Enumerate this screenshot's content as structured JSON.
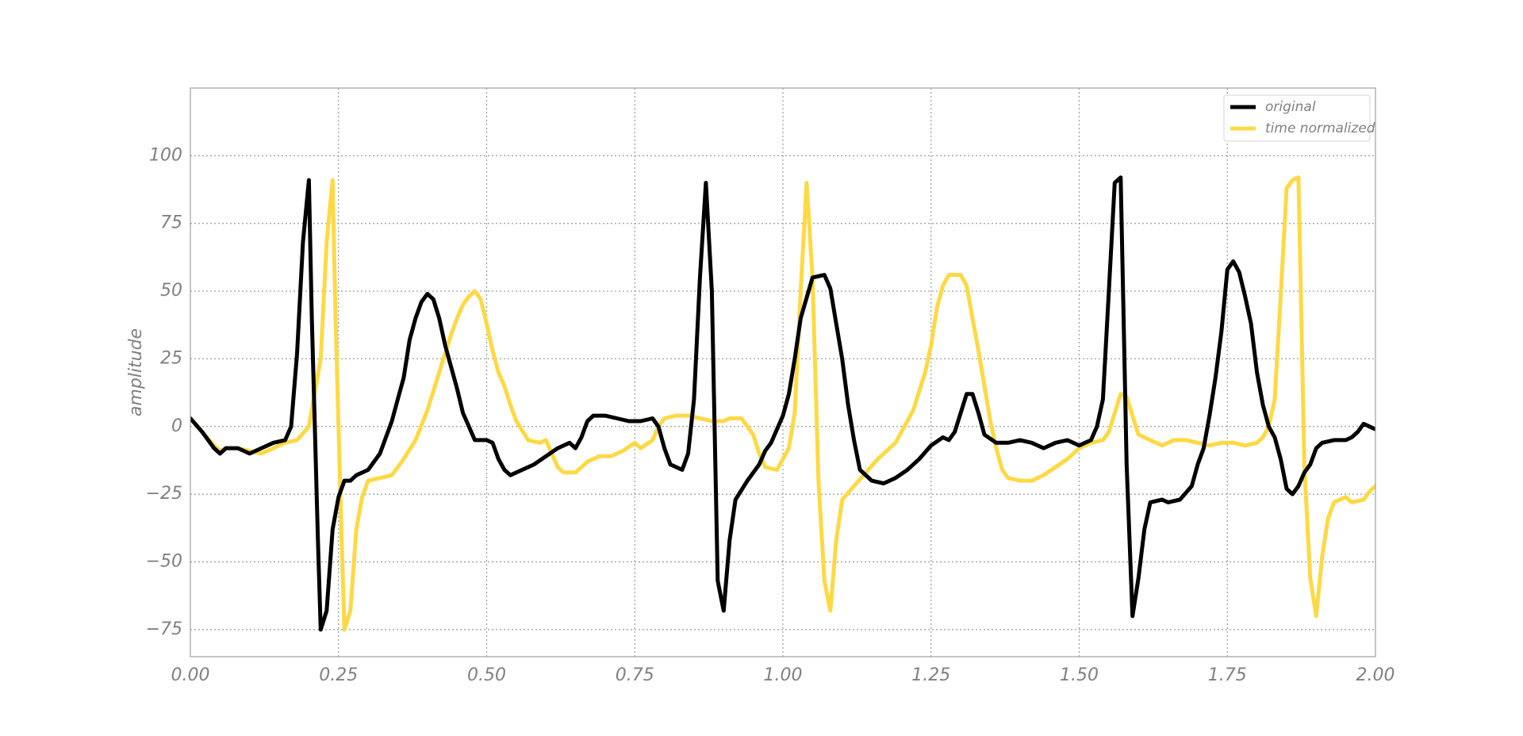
{
  "chart_data": {
    "type": "line",
    "title": "",
    "xlabel": "",
    "ylabel": "amplitude",
    "xlim": [
      0,
      2
    ],
    "ylim": [
      -85,
      125
    ],
    "x_ticks": [
      0,
      0.25,
      0.5,
      0.75,
      1.0,
      1.25,
      1.5,
      1.75,
      2.0
    ],
    "x_tick_labels": [
      "0.00",
      "0.25",
      "0.50",
      "0.75",
      "1.00",
      "1.25",
      "1.50",
      "1.75",
      "2.00"
    ],
    "y_ticks": [
      100,
      75,
      50,
      25,
      0,
      -25,
      -50,
      -75
    ],
    "y_tick_labels": [
      "100",
      "75",
      "50",
      "25",
      "0",
      "−25",
      "−50",
      "−75"
    ],
    "grid": true,
    "legend_position": "top-right",
    "series": [
      {
        "name": "original",
        "color": "#000000",
        "points": [
          [
            0.0,
            3
          ],
          [
            0.02,
            -2
          ],
          [
            0.04,
            -8
          ],
          [
            0.05,
            -10
          ],
          [
            0.06,
            -8
          ],
          [
            0.08,
            -8
          ],
          [
            0.1,
            -10
          ],
          [
            0.12,
            -8
          ],
          [
            0.14,
            -6
          ],
          [
            0.16,
            -5
          ],
          [
            0.17,
            0
          ],
          [
            0.18,
            27
          ],
          [
            0.19,
            68
          ],
          [
            0.2,
            91
          ],
          [
            0.205,
            40
          ],
          [
            0.21,
            0
          ],
          [
            0.215,
            -40
          ],
          [
            0.22,
            -75
          ],
          [
            0.23,
            -68
          ],
          [
            0.24,
            -38
          ],
          [
            0.25,
            -26
          ],
          [
            0.26,
            -20
          ],
          [
            0.27,
            -20
          ],
          [
            0.28,
            -18
          ],
          [
            0.3,
            -16
          ],
          [
            0.32,
            -10
          ],
          [
            0.34,
            2
          ],
          [
            0.35,
            10
          ],
          [
            0.36,
            18
          ],
          [
            0.37,
            32
          ],
          [
            0.38,
            40
          ],
          [
            0.39,
            46
          ],
          [
            0.4,
            49
          ],
          [
            0.41,
            47
          ],
          [
            0.42,
            40
          ],
          [
            0.43,
            30
          ],
          [
            0.44,
            22
          ],
          [
            0.45,
            14
          ],
          [
            0.46,
            5
          ],
          [
            0.47,
            0
          ],
          [
            0.48,
            -5
          ],
          [
            0.5,
            -5
          ],
          [
            0.51,
            -6
          ],
          [
            0.52,
            -12
          ],
          [
            0.53,
            -16
          ],
          [
            0.54,
            -18
          ],
          [
            0.56,
            -16
          ],
          [
            0.58,
            -14
          ],
          [
            0.6,
            -11
          ],
          [
            0.62,
            -8
          ],
          [
            0.64,
            -6
          ],
          [
            0.65,
            -8
          ],
          [
            0.66,
            -4
          ],
          [
            0.67,
            2
          ],
          [
            0.68,
            4
          ],
          [
            0.7,
            4
          ],
          [
            0.72,
            3
          ],
          [
            0.74,
            2
          ],
          [
            0.76,
            2
          ],
          [
            0.78,
            3
          ],
          [
            0.79,
            0
          ],
          [
            0.8,
            -8
          ],
          [
            0.81,
            -14
          ],
          [
            0.83,
            -16
          ],
          [
            0.84,
            -10
          ],
          [
            0.85,
            10
          ],
          [
            0.86,
            55
          ],
          [
            0.87,
            90
          ],
          [
            0.88,
            50
          ],
          [
            0.89,
            -57
          ],
          [
            0.9,
            -68
          ],
          [
            0.91,
            -42
          ],
          [
            0.92,
            -27
          ],
          [
            0.94,
            -20
          ],
          [
            0.96,
            -14
          ],
          [
            0.97,
            -9
          ],
          [
            0.98,
            -6
          ],
          [
            1.0,
            4
          ],
          [
            1.01,
            12
          ],
          [
            1.02,
            25
          ],
          [
            1.03,
            40
          ],
          [
            1.05,
            55
          ],
          [
            1.07,
            56
          ],
          [
            1.08,
            51
          ],
          [
            1.09,
            38
          ],
          [
            1.1,
            25
          ],
          [
            1.11,
            8
          ],
          [
            1.12,
            -5
          ],
          [
            1.13,
            -16
          ],
          [
            1.15,
            -20
          ],
          [
            1.17,
            -21
          ],
          [
            1.19,
            -19
          ],
          [
            1.21,
            -16
          ],
          [
            1.23,
            -12
          ],
          [
            1.25,
            -7
          ],
          [
            1.27,
            -4
          ],
          [
            1.28,
            -5
          ],
          [
            1.29,
            -2
          ],
          [
            1.3,
            5
          ],
          [
            1.31,
            12
          ],
          [
            1.32,
            12
          ],
          [
            1.33,
            5
          ],
          [
            1.34,
            -3
          ],
          [
            1.36,
            -6
          ],
          [
            1.38,
            -6
          ],
          [
            1.4,
            -5
          ],
          [
            1.42,
            -6
          ],
          [
            1.44,
            -8
          ],
          [
            1.46,
            -6
          ],
          [
            1.48,
            -5
          ],
          [
            1.5,
            -7
          ],
          [
            1.52,
            -5
          ],
          [
            1.53,
            0
          ],
          [
            1.54,
            10
          ],
          [
            1.55,
            50
          ],
          [
            1.56,
            90
          ],
          [
            1.57,
            92
          ],
          [
            1.575,
            40
          ],
          [
            1.58,
            -14
          ],
          [
            1.59,
            -70
          ],
          [
            1.6,
            -56
          ],
          [
            1.61,
            -38
          ],
          [
            1.62,
            -28
          ],
          [
            1.64,
            -27
          ],
          [
            1.65,
            -28
          ],
          [
            1.67,
            -27
          ],
          [
            1.69,
            -22
          ],
          [
            1.7,
            -14
          ],
          [
            1.71,
            -8
          ],
          [
            1.72,
            4
          ],
          [
            1.73,
            18
          ],
          [
            1.74,
            35
          ],
          [
            1.75,
            58
          ],
          [
            1.76,
            61
          ],
          [
            1.77,
            57
          ],
          [
            1.78,
            48
          ],
          [
            1.79,
            38
          ],
          [
            1.8,
            20
          ],
          [
            1.81,
            8
          ],
          [
            1.82,
            0
          ],
          [
            1.83,
            -4
          ],
          [
            1.84,
            -12
          ],
          [
            1.85,
            -23
          ],
          [
            1.86,
            -25
          ],
          [
            1.87,
            -22
          ],
          [
            1.88,
            -17
          ],
          [
            1.89,
            -14
          ],
          [
            1.9,
            -8
          ],
          [
            1.91,
            -6
          ],
          [
            1.93,
            -5
          ],
          [
            1.95,
            -5
          ],
          [
            1.96,
            -4
          ],
          [
            1.97,
            -2
          ],
          [
            1.98,
            1
          ],
          [
            1.99,
            0
          ],
          [
            2.0,
            -1
          ]
        ]
      },
      {
        "name": "time normalized",
        "color": "#FFD945",
        "points": [
          [
            0.0,
            3
          ],
          [
            0.02,
            -2
          ],
          [
            0.04,
            -7
          ],
          [
            0.05,
            -9
          ],
          [
            0.06,
            -8
          ],
          [
            0.08,
            -8
          ],
          [
            0.1,
            -9
          ],
          [
            0.12,
            -10
          ],
          [
            0.14,
            -8
          ],
          [
            0.16,
            -6
          ],
          [
            0.18,
            -5
          ],
          [
            0.2,
            0
          ],
          [
            0.22,
            25
          ],
          [
            0.23,
            68
          ],
          [
            0.24,
            91
          ],
          [
            0.245,
            40
          ],
          [
            0.25,
            0
          ],
          [
            0.255,
            -40
          ],
          [
            0.26,
            -75
          ],
          [
            0.27,
            -68
          ],
          [
            0.28,
            -38
          ],
          [
            0.29,
            -26
          ],
          [
            0.3,
            -20
          ],
          [
            0.32,
            -19
          ],
          [
            0.34,
            -18
          ],
          [
            0.36,
            -12
          ],
          [
            0.38,
            -5
          ],
          [
            0.4,
            6
          ],
          [
            0.42,
            20
          ],
          [
            0.44,
            34
          ],
          [
            0.45,
            40
          ],
          [
            0.46,
            45
          ],
          [
            0.47,
            48
          ],
          [
            0.48,
            50
          ],
          [
            0.49,
            47
          ],
          [
            0.5,
            38
          ],
          [
            0.51,
            28
          ],
          [
            0.52,
            20
          ],
          [
            0.53,
            15
          ],
          [
            0.54,
            8
          ],
          [
            0.55,
            2
          ],
          [
            0.57,
            -5
          ],
          [
            0.59,
            -6
          ],
          [
            0.6,
            -5
          ],
          [
            0.61,
            -10
          ],
          [
            0.62,
            -15
          ],
          [
            0.63,
            -17
          ],
          [
            0.65,
            -17
          ],
          [
            0.67,
            -13
          ],
          [
            0.69,
            -11
          ],
          [
            0.71,
            -11
          ],
          [
            0.73,
            -9
          ],
          [
            0.75,
            -6
          ],
          [
            0.76,
            -8
          ],
          [
            0.78,
            -5
          ],
          [
            0.79,
            0
          ],
          [
            0.8,
            3
          ],
          [
            0.82,
            4
          ],
          [
            0.84,
            4
          ],
          [
            0.86,
            3
          ],
          [
            0.88,
            2
          ],
          [
            0.9,
            2
          ],
          [
            0.91,
            3
          ],
          [
            0.93,
            3
          ],
          [
            0.95,
            -3
          ],
          [
            0.96,
            -10
          ],
          [
            0.97,
            -15
          ],
          [
            0.99,
            -16
          ],
          [
            1.0,
            -12
          ],
          [
            1.01,
            -8
          ],
          [
            1.02,
            5
          ],
          [
            1.03,
            50
          ],
          [
            1.04,
            90
          ],
          [
            1.05,
            55
          ],
          [
            1.06,
            -20
          ],
          [
            1.07,
            -57
          ],
          [
            1.08,
            -68
          ],
          [
            1.09,
            -42
          ],
          [
            1.1,
            -27
          ],
          [
            1.12,
            -22
          ],
          [
            1.14,
            -17
          ],
          [
            1.16,
            -12
          ],
          [
            1.18,
            -8
          ],
          [
            1.19,
            -6
          ],
          [
            1.2,
            -2
          ],
          [
            1.22,
            6
          ],
          [
            1.24,
            20
          ],
          [
            1.25,
            30
          ],
          [
            1.26,
            44
          ],
          [
            1.27,
            52
          ],
          [
            1.28,
            56
          ],
          [
            1.3,
            56
          ],
          [
            1.31,
            52
          ],
          [
            1.32,
            40
          ],
          [
            1.33,
            28
          ],
          [
            1.34,
            15
          ],
          [
            1.35,
            2
          ],
          [
            1.36,
            -8
          ],
          [
            1.37,
            -16
          ],
          [
            1.38,
            -19
          ],
          [
            1.4,
            -20
          ],
          [
            1.42,
            -20
          ],
          [
            1.44,
            -18
          ],
          [
            1.46,
            -15
          ],
          [
            1.48,
            -12
          ],
          [
            1.5,
            -8
          ],
          [
            1.52,
            -6
          ],
          [
            1.54,
            -5
          ],
          [
            1.55,
            -2
          ],
          [
            1.56,
            5
          ],
          [
            1.57,
            12
          ],
          [
            1.58,
            11
          ],
          [
            1.59,
            4
          ],
          [
            1.6,
            -3
          ],
          [
            1.62,
            -5
          ],
          [
            1.64,
            -7
          ],
          [
            1.66,
            -5
          ],
          [
            1.68,
            -5
          ],
          [
            1.7,
            -6
          ],
          [
            1.72,
            -7
          ],
          [
            1.74,
            -6
          ],
          [
            1.76,
            -6
          ],
          [
            1.78,
            -7
          ],
          [
            1.8,
            -6
          ],
          [
            1.81,
            -4
          ],
          [
            1.82,
            0
          ],
          [
            1.83,
            10
          ],
          [
            1.84,
            48
          ],
          [
            1.85,
            88
          ],
          [
            1.86,
            91
          ],
          [
            1.87,
            92
          ],
          [
            1.875,
            40
          ],
          [
            1.88,
            -15
          ],
          [
            1.89,
            -56
          ],
          [
            1.9,
            -70
          ],
          [
            1.91,
            -48
          ],
          [
            1.92,
            -34
          ],
          [
            1.93,
            -28
          ],
          [
            1.95,
            -26
          ],
          [
            1.96,
            -28
          ],
          [
            1.98,
            -27
          ],
          [
            1.99,
            -24
          ],
          [
            2.0,
            -22
          ]
        ]
      }
    ]
  }
}
